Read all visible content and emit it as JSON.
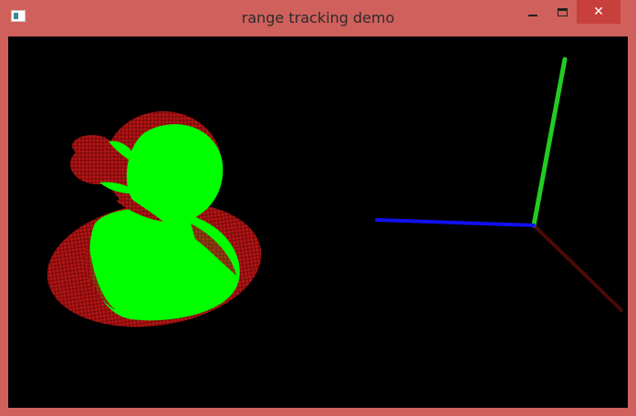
{
  "window": {
    "title": "range tracking demo",
    "buttons": {
      "minimize_icon": "minimize-icon",
      "maximize_icon": "maximize-icon",
      "close_icon": "close-icon",
      "close_glyph": "✕"
    }
  },
  "colors": {
    "frame": "#d0605c",
    "close_button": "#c7403c",
    "viewport_bg": "#000000",
    "model_red": "#b01414",
    "tracked_green": "#00ff00",
    "axis_x": "#4a0a06",
    "axis_y": "#22cc22",
    "axis_z": "#1010ee"
  },
  "scene": {
    "type": "3d-point-cloud",
    "object": "rubber duck",
    "layers": [
      "model point cloud (red)",
      "tracked point cloud (green)"
    ],
    "axes": [
      "x (dark red)",
      "y (green)",
      "z (blue)"
    ]
  }
}
